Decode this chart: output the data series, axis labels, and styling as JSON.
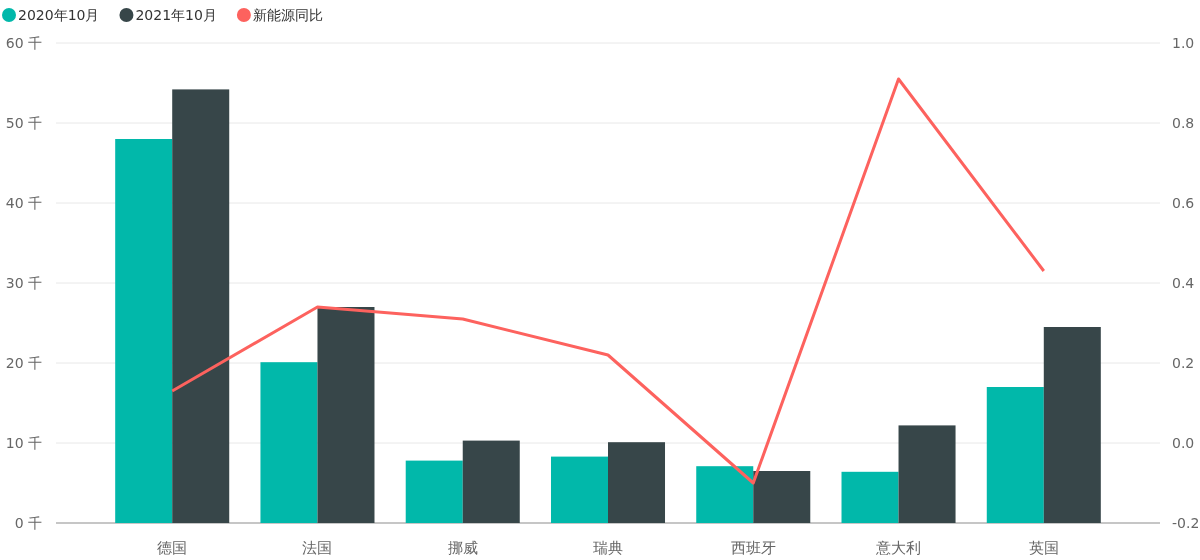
{
  "chart_data": {
    "type": "bar",
    "categories": [
      "德国",
      "法国",
      "挪威",
      "瑞典",
      "西班牙",
      "意大利",
      "英国"
    ],
    "series": [
      {
        "name": "2020年10月",
        "color": "#01b8aa",
        "values": [
          48,
          20.1,
          7.8,
          8.3,
          7.1,
          6.4,
          17
        ]
      },
      {
        "name": "2021年10月",
        "color": "#374649",
        "values": [
          54.2,
          27,
          10.3,
          10.1,
          6.5,
          12.2,
          24.5
        ]
      },
      {
        "name": "新能源同比",
        "type": "line",
        "axis": "y2",
        "color": "#fd625e",
        "values": [
          0.13,
          0.34,
          0.31,
          0.22,
          -0.1,
          0.91,
          0.43
        ]
      }
    ],
    "ylim": [
      0,
      60
    ],
    "yticks": [
      {
        "value": 0,
        "label": "0 千"
      },
      {
        "value": 10,
        "label": "10 千"
      },
      {
        "value": 20,
        "label": "20 千"
      },
      {
        "value": 30,
        "label": "30 千"
      },
      {
        "value": 40,
        "label": "40 千"
      },
      {
        "value": 50,
        "label": "50 千"
      },
      {
        "value": 60,
        "label": "60 千"
      }
    ],
    "y2lim": [
      -0.2,
      1
    ],
    "y2ticks": [
      -0.2,
      {
        "value": 0,
        "label": "0.0"
      },
      0.2,
      0.4,
      0.6,
      0.8,
      {
        "value": 1,
        "label": "1.0"
      }
    ],
    "grid": "y",
    "legend": "top left",
    "marker": "none"
  }
}
